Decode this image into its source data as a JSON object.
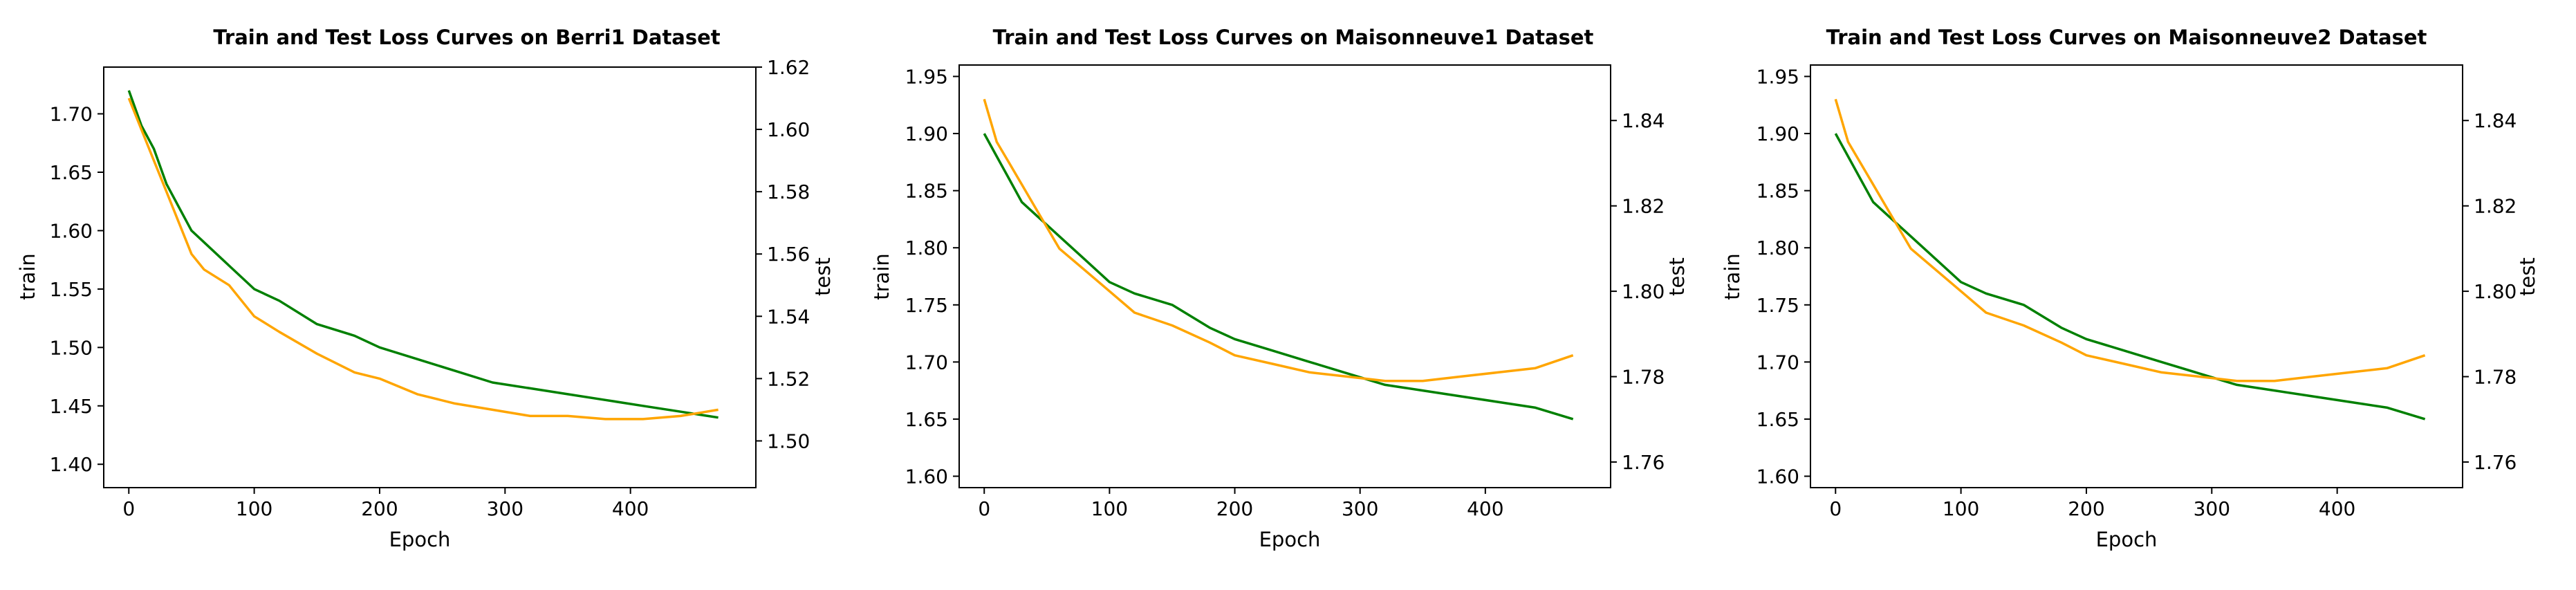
{
  "colors": {
    "train": "#008000",
    "test": "#FFA500"
  },
  "chart_data": [
    {
      "type": "line",
      "title": "Train and Test Loss Curves on Berri1 Dataset",
      "xlabel": "Epoch",
      "ylabel_left": "train",
      "ylabel_right": "test",
      "xlim": [
        -20,
        500
      ],
      "ylim_left": [
        1.38,
        1.74
      ],
      "ylim_right": [
        1.485,
        1.62
      ],
      "xticks": [
        0,
        100,
        200,
        300,
        400
      ],
      "xtick_labels": [
        "0",
        "100",
        "200",
        "300",
        "400"
      ],
      "yticks_left": [
        1.4,
        1.45,
        1.5,
        1.55,
        1.6,
        1.65,
        1.7
      ],
      "ytick_labels_left": [
        "1.40",
        "1.45",
        "1.50",
        "1.55",
        "1.60",
        "1.65",
        "1.70"
      ],
      "yticks_right": [
        1.5,
        1.52,
        1.54,
        1.56,
        1.58,
        1.6,
        1.62
      ],
      "ytick_labels_right": [
        "1.50",
        "1.52",
        "1.54",
        "1.56",
        "1.58",
        "1.60",
        "1.62"
      ],
      "series": [
        {
          "axis": "left",
          "color": "#008000",
          "x": [
            0,
            10,
            20,
            30,
            40,
            50,
            60,
            80,
            100,
            120,
            150,
            180,
            200,
            230,
            260,
            290,
            320,
            350,
            380,
            410,
            440,
            470
          ],
          "y": [
            1.72,
            1.69,
            1.67,
            1.64,
            1.62,
            1.6,
            1.59,
            1.57,
            1.55,
            1.54,
            1.52,
            1.51,
            1.5,
            1.49,
            1.48,
            1.47,
            1.465,
            1.46,
            1.455,
            1.45,
            1.445,
            1.44
          ]
        },
        {
          "axis": "right",
          "color": "#FFA500",
          "x": [
            0,
            10,
            20,
            30,
            40,
            50,
            60,
            80,
            100,
            120,
            150,
            180,
            200,
            230,
            260,
            290,
            320,
            350,
            380,
            410,
            440,
            470
          ],
          "y": [
            1.61,
            1.6,
            1.59,
            1.58,
            1.57,
            1.56,
            1.555,
            1.55,
            1.54,
            1.535,
            1.528,
            1.522,
            1.52,
            1.515,
            1.512,
            1.51,
            1.508,
            1.508,
            1.507,
            1.507,
            1.508,
            1.51
          ]
        }
      ]
    },
    {
      "type": "line",
      "title": "Train and Test Loss Curves on Maisonneuve1 Dataset",
      "xlabel": "Epoch",
      "ylabel_left": "train",
      "ylabel_right": "test",
      "xlim": [
        -20,
        500
      ],
      "ylim_left": [
        1.59,
        1.96
      ],
      "ylim_right": [
        1.754,
        1.853
      ],
      "xticks": [
        0,
        100,
        200,
        300,
        400
      ],
      "xtick_labels": [
        "0",
        "100",
        "200",
        "300",
        "400"
      ],
      "yticks_left": [
        1.6,
        1.65,
        1.7,
        1.75,
        1.8,
        1.85,
        1.9,
        1.95
      ],
      "ytick_labels_left": [
        "1.60",
        "1.65",
        "1.70",
        "1.75",
        "1.80",
        "1.85",
        "1.90",
        "1.95"
      ],
      "yticks_right": [
        1.76,
        1.78,
        1.8,
        1.82,
        1.84
      ],
      "ytick_labels_right": [
        "1.76",
        "1.78",
        "1.80",
        "1.82",
        "1.84"
      ],
      "series": [
        {
          "axis": "left",
          "color": "#008000",
          "x": [
            0,
            10,
            20,
            30,
            40,
            50,
            60,
            80,
            100,
            120,
            150,
            180,
            200,
            230,
            260,
            290,
            320,
            350,
            380,
            410,
            440,
            470
          ],
          "y": [
            1.9,
            1.88,
            1.86,
            1.84,
            1.83,
            1.82,
            1.81,
            1.79,
            1.77,
            1.76,
            1.75,
            1.73,
            1.72,
            1.71,
            1.7,
            1.69,
            1.68,
            1.675,
            1.67,
            1.665,
            1.66,
            1.65
          ]
        },
        {
          "axis": "right",
          "color": "#FFA500",
          "x": [
            0,
            10,
            20,
            30,
            40,
            50,
            60,
            80,
            100,
            120,
            150,
            180,
            200,
            230,
            260,
            290,
            320,
            350,
            380,
            410,
            440,
            470
          ],
          "y": [
            1.845,
            1.835,
            1.83,
            1.825,
            1.82,
            1.815,
            1.81,
            1.805,
            1.8,
            1.795,
            1.792,
            1.788,
            1.785,
            1.783,
            1.781,
            1.78,
            1.779,
            1.779,
            1.78,
            1.781,
            1.782,
            1.785
          ]
        }
      ]
    },
    {
      "type": "line",
      "title": "Train and Test Loss Curves on Maisonneuve2 Dataset",
      "xlabel": "Epoch",
      "ylabel_left": "train",
      "ylabel_right": "test",
      "xlim": [
        -20,
        500
      ],
      "ylim_left": [
        1.59,
        1.96
      ],
      "ylim_right": [
        1.754,
        1.853
      ],
      "xticks": [
        0,
        100,
        200,
        300,
        400
      ],
      "xtick_labels": [
        "0",
        "100",
        "200",
        "300",
        "400"
      ],
      "yticks_left": [
        1.6,
        1.65,
        1.7,
        1.75,
        1.8,
        1.85,
        1.9,
        1.95
      ],
      "ytick_labels_left": [
        "1.60",
        "1.65",
        "1.70",
        "1.75",
        "1.80",
        "1.85",
        "1.90",
        "1.95"
      ],
      "yticks_right": [
        1.76,
        1.78,
        1.8,
        1.82,
        1.84
      ],
      "ytick_labels_right": [
        "1.76",
        "1.78",
        "1.80",
        "1.82",
        "1.84"
      ],
      "series": [
        {
          "axis": "left",
          "color": "#008000",
          "x": [
            0,
            10,
            20,
            30,
            40,
            50,
            60,
            80,
            100,
            120,
            150,
            180,
            200,
            230,
            260,
            290,
            320,
            350,
            380,
            410,
            440,
            470
          ],
          "y": [
            1.9,
            1.88,
            1.86,
            1.84,
            1.83,
            1.82,
            1.81,
            1.79,
            1.77,
            1.76,
            1.75,
            1.73,
            1.72,
            1.71,
            1.7,
            1.69,
            1.68,
            1.675,
            1.67,
            1.665,
            1.66,
            1.65
          ]
        },
        {
          "axis": "right",
          "color": "#FFA500",
          "x": [
            0,
            10,
            20,
            30,
            40,
            50,
            60,
            80,
            100,
            120,
            150,
            180,
            200,
            230,
            260,
            290,
            320,
            350,
            380,
            410,
            440,
            470
          ],
          "y": [
            1.845,
            1.835,
            1.83,
            1.825,
            1.82,
            1.815,
            1.81,
            1.805,
            1.8,
            1.795,
            1.792,
            1.788,
            1.785,
            1.783,
            1.781,
            1.78,
            1.779,
            1.779,
            1.78,
            1.781,
            1.782,
            1.785
          ]
        }
      ]
    }
  ]
}
